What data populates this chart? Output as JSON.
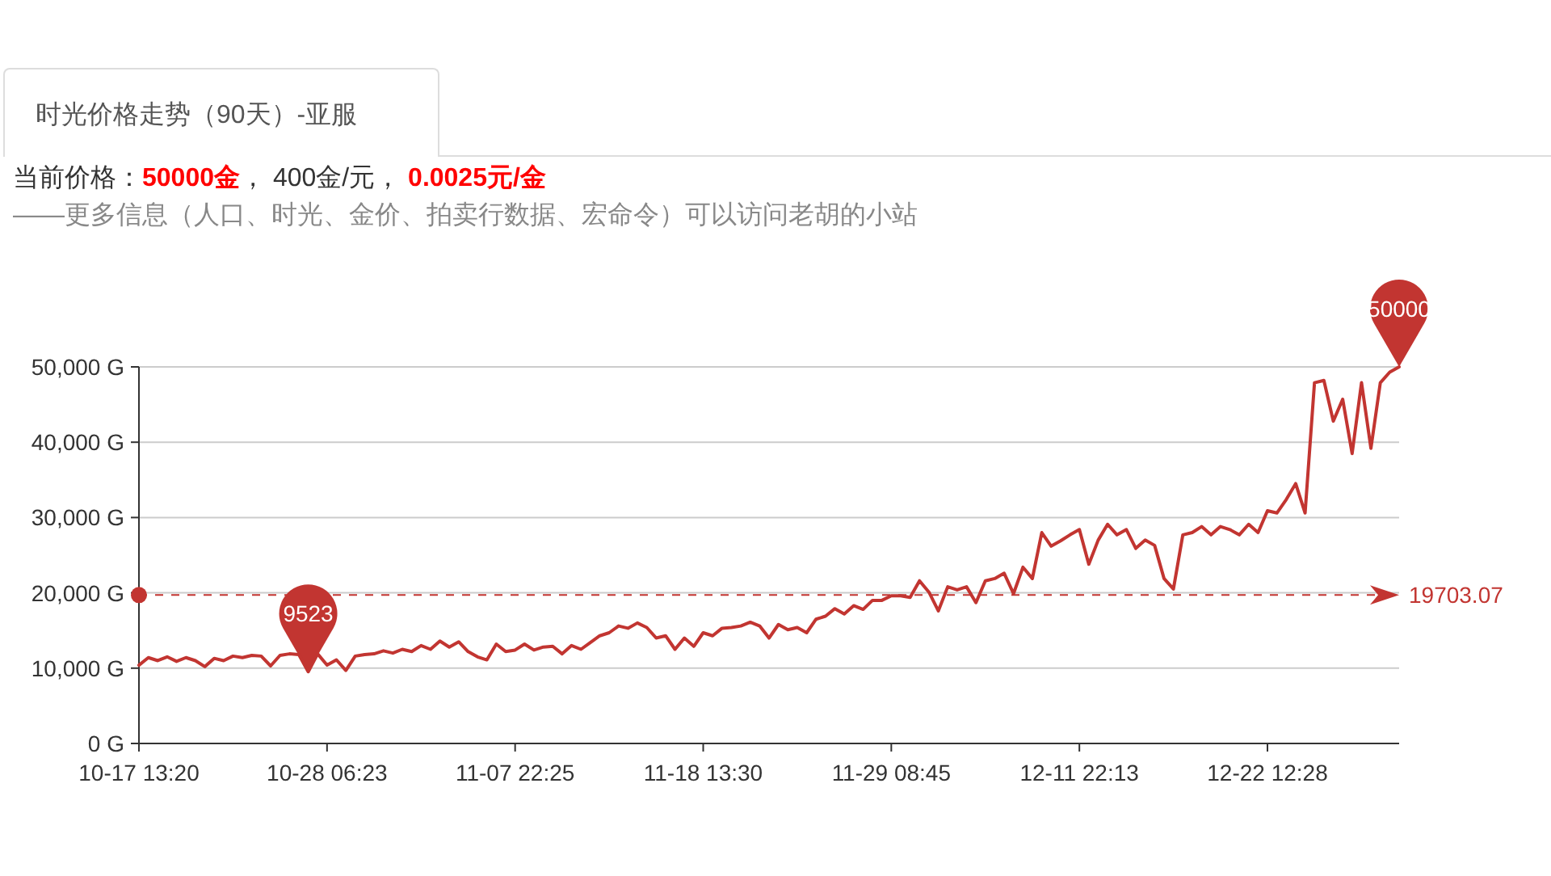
{
  "chart_data": {
    "type": "line",
    "title": "时光价格走势（90天）-亚服",
    "subtitle": "当前价格：50000金， 400金/元， 0.0025元/金",
    "annotations": [
      "——更多信息（人口、时光、金价、拍卖行数据、宏命令）可以访问老胡的小站",
      {
        "text": "9523",
        "y": 9523
      },
      {
        "text": "50000",
        "y": 50000
      }
    ],
    "categories": [
      "10-17 13:20",
      null,
      null,
      null,
      null,
      null,
      null,
      null,
      null,
      null,
      null,
      null,
      null,
      null,
      null,
      null,
      null,
      null,
      null,
      null,
      "10-28 06:23",
      null,
      null,
      null,
      null,
      null,
      null,
      null,
      null,
      null,
      null,
      null,
      null,
      null,
      null,
      null,
      null,
      null,
      null,
      null,
      "11-07 22:25",
      null,
      null,
      null,
      null,
      null,
      null,
      null,
      null,
      null,
      null,
      null,
      null,
      null,
      null,
      null,
      null,
      null,
      null,
      null,
      "11-18 13:30",
      null,
      null,
      null,
      null,
      null,
      null,
      null,
      null,
      null,
      null,
      null,
      null,
      null,
      null,
      null,
      null,
      null,
      null,
      null,
      "11-29 08:45",
      null,
      null,
      null,
      null,
      null,
      null,
      null,
      null,
      null,
      null,
      null,
      null,
      null,
      null,
      null,
      null,
      null,
      null,
      null,
      "12-11 22:13",
      null,
      null,
      null,
      null,
      null,
      null,
      null,
      null,
      null,
      null,
      null,
      null,
      null,
      null,
      null,
      null,
      null,
      null,
      null,
      "12-22 12:28",
      null,
      null,
      null,
      null,
      null,
      null,
      null,
      null,
      null,
      null,
      null,
      null,
      null,
      null
    ],
    "series": [
      {
        "color": "#c23531",
        "values": [
          10400,
          11400,
          11000,
          11500,
          10900,
          11400,
          11000,
          10200,
          11300,
          11000,
          11600,
          11400,
          11700,
          11600,
          10300,
          11700,
          11900,
          11800,
          9523,
          11900,
          10400,
          11100,
          9700,
          11600,
          11800,
          11900,
          12300,
          12000,
          12500,
          12200,
          13000,
          12500,
          13600,
          12800,
          13500,
          12200,
          11500,
          11100,
          13200,
          12200,
          12400,
          13200,
          12400,
          12800,
          12900,
          11900,
          13000,
          12500,
          13400,
          14300,
          14700,
          15600,
          15300,
          16000,
          15400,
          14000,
          14300,
          12500,
          14000,
          12900,
          14700,
          14300,
          15300,
          15400,
          15600,
          16100,
          15600,
          14000,
          15800,
          15100,
          15400,
          14700,
          16500,
          16900,
          17900,
          17200,
          18300,
          17800,
          19000,
          19000,
          19600,
          19600,
          19400,
          21600,
          20100,
          17600,
          20800,
          20400,
          20800,
          18700,
          21600,
          21900,
          22600,
          19900,
          23400,
          21900,
          28000,
          26200,
          26900,
          27700,
          28400,
          23800,
          27000,
          29100,
          27700,
          28400,
          25900,
          27000,
          26300,
          21900,
          20500,
          27700,
          28000,
          28800,
          27700,
          28800,
          28400,
          27700,
          29100,
          28000,
          30900,
          30600,
          32400,
          34500,
          30600,
          47900,
          48200,
          42800,
          45700,
          38500,
          47900,
          39200,
          47900,
          49300,
          50000
        ]
      }
    ],
    "ylim": [
      0,
      50000
    ],
    "yticks": [
      {
        "value": 0,
        "label": "0 G"
      },
      {
        "value": 10000,
        "label": "10,000 G"
      },
      {
        "value": 20000,
        "label": "20,000 G"
      },
      {
        "value": 30000,
        "label": "30,000 G"
      },
      {
        "value": 40000,
        "label": "40,000 G"
      },
      {
        "value": 50000,
        "label": "50,000 G"
      }
    ],
    "grid": "y",
    "line_style": "solid",
    "ref_lines": [
      {
        "axis": "y",
        "value": 19703.07,
        "label": "19703.07",
        "color": "#c23531",
        "line_style": "dashed"
      }
    ]
  }
}
